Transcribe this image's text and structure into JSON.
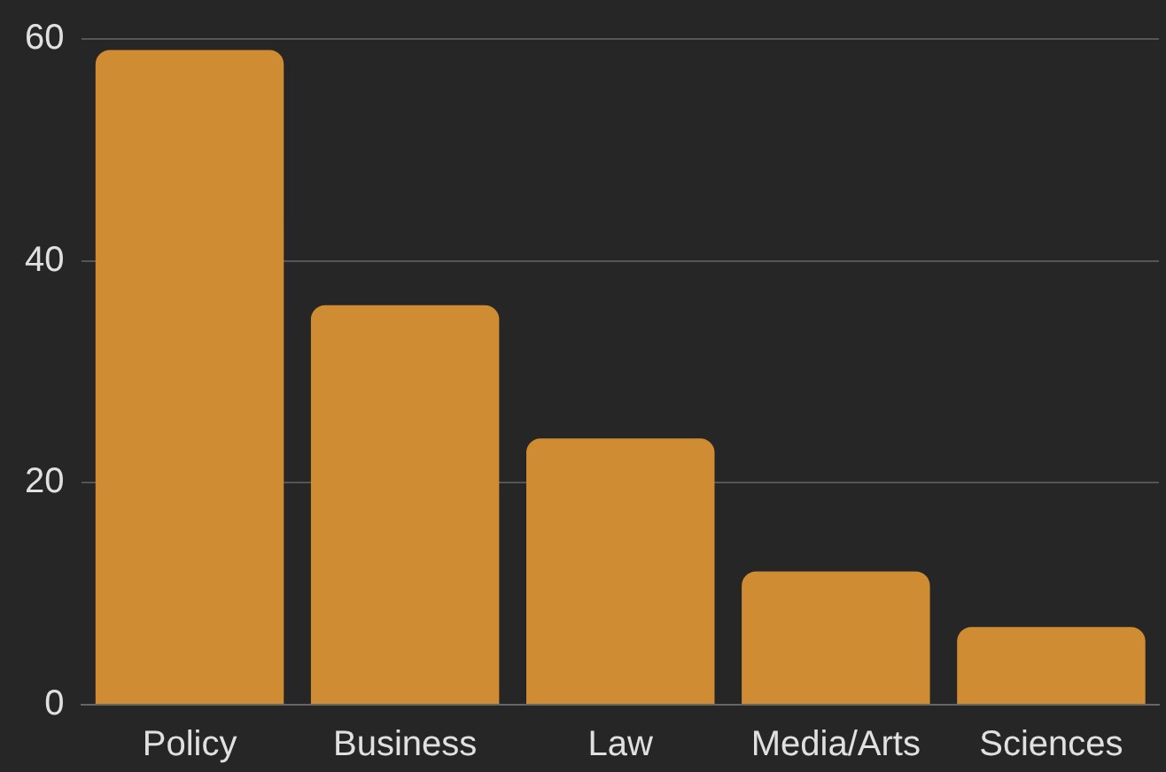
{
  "chart_data": {
    "type": "bar",
    "categories": [
      "Policy",
      "Business",
      "Law",
      "Media/Arts",
      "Sciences"
    ],
    "values": [
      59,
      36,
      24,
      12,
      7
    ],
    "color": "#cf8c33",
    "ylim": [
      0,
      60
    ],
    "yticks": [
      0,
      20,
      40,
      60
    ],
    "grid": "y",
    "legend": false
  }
}
